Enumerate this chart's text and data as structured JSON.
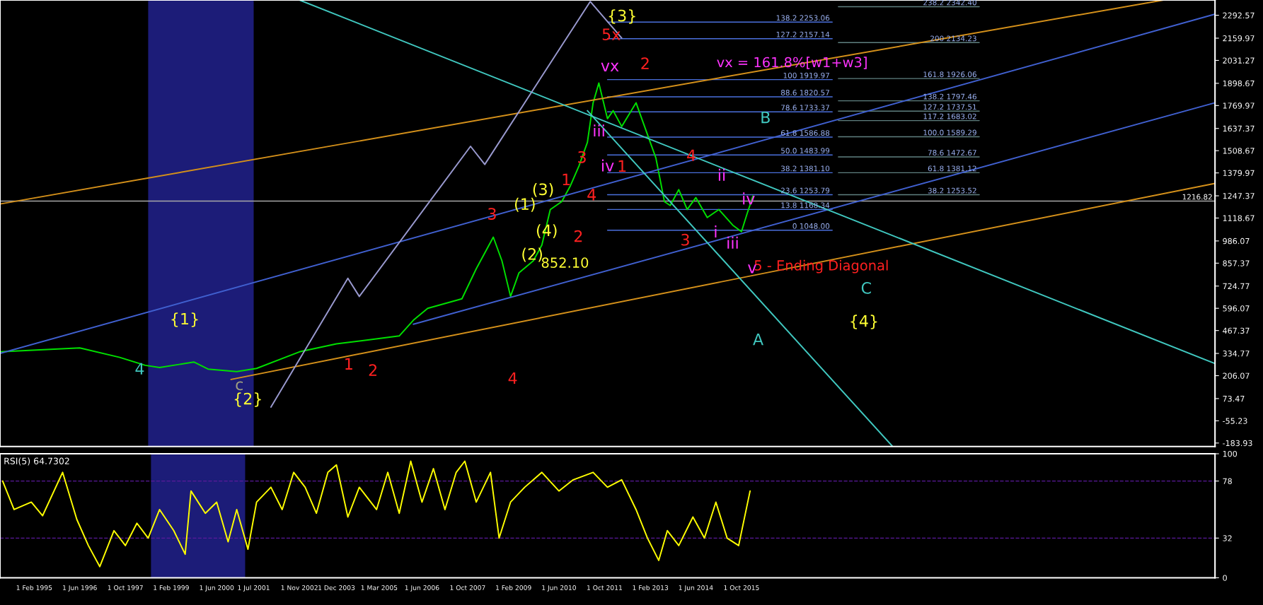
{
  "chart_data": [
    {
      "type": "line",
      "xlim": [
        "1994-02",
        "2029-08"
      ],
      "ylim": [
        -204,
        2381
      ],
      "yticks": [
        2292.57,
        2159.97,
        2031.27,
        1898.67,
        1769.97,
        1637.37,
        1508.67,
        1379.97,
        1247.37,
        1118.67,
        986.07,
        857.37,
        724.77,
        596.07,
        467.37,
        334.77,
        206.07,
        73.47,
        -55.23,
        -183.93
      ],
      "xticks": [
        {
          "value": "1995-02-01",
          "label": null
        },
        {
          "value": "1996-06-01",
          "label": null
        },
        {
          "value": "1997-10-01",
          "label": null
        },
        {
          "value": "1999-02-01",
          "label": null
        },
        {
          "value": "2000-06-01",
          "label": null
        },
        {
          "value": "2001-07-01",
          "label": null
        },
        {
          "value": "2002-11-01",
          "label": null
        },
        {
          "value": "2003-12-01",
          "label": null
        },
        {
          "value": "2005-03-01",
          "label": null
        },
        {
          "value": "2006-06-01",
          "label": null
        },
        {
          "value": "2007-10-01",
          "label": null
        },
        {
          "value": "2009-02-01",
          "label": null
        },
        {
          "value": "2010-06-01",
          "label": null
        },
        {
          "value": "2011-10-01",
          "label": null
        },
        {
          "value": "2013-02-01",
          "label": null
        },
        {
          "value": "2014-06-01",
          "label": null
        },
        {
          "value": "2015-10-01",
          "label": null
        }
      ],
      "tick_labels": "y",
      "series": [
        {
          "color": "#00e000",
          "x": [
            "1994-02",
            "1996-06",
            "1997-08",
            "1998-05",
            "1998-10",
            "1999-10",
            "2000-03",
            "2001-01",
            "2001-08",
            "2002-11",
            "2003-12",
            "2004-11",
            "2005-10",
            "2006-03",
            "2006-08",
            "2007-08",
            "2008-01",
            "2008-07",
            "2008-10",
            "2009-01",
            "2009-04",
            "2009-09",
            "2009-12",
            "2010-03",
            "2010-07",
            "2010-10",
            "2011-01",
            "2011-04",
            "2011-06",
            "2011-08",
            "2011-11",
            "2012-01",
            "2012-04",
            "2012-09",
            "2012-11",
            "2013-04",
            "2013-07",
            "2013-09",
            "2013-12",
            "2014-03",
            "2014-06",
            "2014-10",
            "2015-02",
            "2015-07",
            "2015-10",
            "2015-12",
            "2016-02"
          ],
          "values": [
            344,
            367,
            312,
            266,
            253,
            285,
            244,
            230,
            248,
            344,
            390,
            413,
            436,
            527,
            596,
            651,
            825,
            1008,
            871,
            665,
            802,
            871,
            962,
            1168,
            1214,
            1305,
            1420,
            1557,
            1786,
            1900,
            1694,
            1740,
            1649,
            1786,
            1694,
            1466,
            1214,
            1191,
            1283,
            1168,
            1237,
            1122,
            1168,
            1077,
            1040,
            1145,
            1246
          ]
        },
        {
          "color": "#d4901a",
          "x": [
            "1994-02",
            "2028-02"
          ],
          "values": [
            1200,
            2381
          ]
        },
        {
          "color": "#d4901a",
          "x": [
            "2000-11",
            "2029-08"
          ],
          "values": [
            184,
            1319
          ]
        },
        {
          "color": "#4060d0",
          "x": [
            "1994-02",
            "2029-08"
          ],
          "values": [
            335,
            2299
          ]
        },
        {
          "color": "#4060d0",
          "x": [
            "2006-03",
            "2029-08"
          ],
          "values": [
            504,
            1786
          ]
        },
        {
          "color": "#40c8c0",
          "x": [
            "2002-11",
            "2029-08"
          ],
          "values": [
            2381,
            276
          ]
        },
        {
          "color": "#40c8c0",
          "x": [
            "2011-04",
            "2020-03"
          ],
          "values": [
            1740,
            -204
          ]
        },
        {
          "color": "#9a9ad0",
          "x": [
            "2002-01",
            "2004-04",
            "2004-08",
            "2007-11",
            "2008-04",
            "2011-05",
            "2012-04"
          ],
          "values": [
            24,
            770,
            665,
            1534,
            1429,
            2372,
            2161
          ]
        }
      ],
      "bands": [
        {
          "axis": "x",
          "from": "1998-06",
          "to": "2001-07",
          "color": "#1c1c78"
        }
      ],
      "ref_lines": [
        {
          "axis": "y",
          "value": 2253.06,
          "label": "138.2 2253.06",
          "color": "#4a6fdc"
        },
        {
          "axis": "y",
          "value": 2157.14,
          "label": "127.2 2157.14",
          "color": "#4a6fdc"
        },
        {
          "axis": "y",
          "value": 1919.97,
          "label": "100 1919.97",
          "color": "#4a6fdc"
        },
        {
          "axis": "y",
          "value": 1820.57,
          "label": "88.6 1820.57",
          "color": "#4a6fdc"
        },
        {
          "axis": "y",
          "value": 1733.37,
          "label": "78.6 1733.37",
          "color": "#4a6fdc"
        },
        {
          "axis": "y",
          "value": 1586.88,
          "label": "61.8 1586.88",
          "color": "#4a6fdc"
        },
        {
          "axis": "y",
          "value": 1483.99,
          "label": "50.0 1483.99",
          "color": "#4a6fdc"
        },
        {
          "axis": "y",
          "value": 1381.1,
          "label": "38.2 1381.10",
          "color": "#4a6fdc"
        },
        {
          "axis": "y",
          "value": 1253.79,
          "label": "23.6 1253.79",
          "color": "#4a6fdc"
        },
        {
          "axis": "y",
          "value": 1168.34,
          "label": "13.8 1168.34",
          "color": "#4a6fdc"
        },
        {
          "axis": "y",
          "value": 1048.0,
          "label": "0 1048.00",
          "color": "#4a6fdc"
        },
        {
          "axis": "y",
          "value": 2342.4,
          "label": "238.2 2342.40",
          "color": "#5f8080"
        },
        {
          "axis": "y",
          "value": 2134.23,
          "label": "200 2134.23",
          "color": "#5f8080"
        },
        {
          "axis": "y",
          "value": 1926.06,
          "label": "161.8 1926.06",
          "color": "#5f8080"
        },
        {
          "axis": "y",
          "value": 1797.46,
          "label": "138.2 1797.46",
          "color": "#5f8080"
        },
        {
          "axis": "y",
          "value": 1737.51,
          "label": "127.2 1737.51",
          "color": "#5f8080"
        },
        {
          "axis": "y",
          "value": 1683.02,
          "label": "117.2 1683.02",
          "color": "#5f8080"
        },
        {
          "axis": "y",
          "value": 1589.29,
          "label": "100.0 1589.29",
          "color": "#5f8080"
        },
        {
          "axis": "y",
          "value": 1472.67,
          "label": "78.6 1472.67",
          "color": "#5f8080"
        },
        {
          "axis": "y",
          "value": 1381.12,
          "label": "61.8 1381.12",
          "color": "#5f8080"
        },
        {
          "axis": "y",
          "value": 1253.52,
          "label": "38.2 1253.52",
          "color": "#5f8080"
        },
        {
          "axis": "y",
          "value": 1216.82,
          "label": "1216.82",
          "color": "#a8a8a8"
        }
      ],
      "annotations": [
        "{1}",
        "{2}",
        "{3}",
        "{4}",
        "5x",
        "vx",
        "vx = 161.8%[w1+w3]",
        "1",
        "2",
        "3",
        "4",
        "1",
        "2",
        "3",
        "4",
        "1",
        "2",
        "4",
        "3",
        "5 - Ending Diagonal",
        "A",
        "B",
        "C",
        "(1)",
        "(2)",
        "(3)",
        "(4)",
        "852.10",
        "iii",
        "iv",
        "ii",
        "i",
        "iii",
        "iv",
        "v",
        "c",
        "4"
      ]
    },
    {
      "type": "line",
      "title": "RSI(5) 64.7302",
      "xlim": [
        "1994-02",
        "2029-08"
      ],
      "ylim": [
        0,
        100
      ],
      "yticks": [
        0,
        32,
        78,
        100
      ],
      "xticks": [
        {
          "value": "1995-02-01",
          "label": "1 Feb 1995"
        },
        {
          "value": "1996-06-01",
          "label": "1 Jun 1996"
        },
        {
          "value": "1997-10-01",
          "label": "1 Oct 1997"
        },
        {
          "value": "1999-02-01",
          "label": "1 Feb 1999"
        },
        {
          "value": "2000-06-01",
          "label": "1 Jun 2000"
        },
        {
          "value": "2001-07-01",
          "label": "1 Jul 2001"
        },
        {
          "value": "2002-11-01",
          "label": "1 Nov 2002"
        },
        {
          "value": "2003-12-01",
          "label": "1 Dec 2003"
        },
        {
          "value": "2005-03-01",
          "label": "1 Mar 2005"
        },
        {
          "value": "2006-06-01",
          "label": "1 Jun 2006"
        },
        {
          "value": "2007-10-01",
          "label": "1 Oct 2007"
        },
        {
          "value": "2009-02-01",
          "label": "1 Feb 2009"
        },
        {
          "value": "2010-06-01",
          "label": "1 Jun 2010"
        },
        {
          "value": "2011-10-01",
          "label": "1 Oct 2011"
        },
        {
          "value": "2013-02-01",
          "label": "1 Feb 2013"
        },
        {
          "value": "2014-06-01",
          "label": "1 Jun 2014"
        },
        {
          "value": "2015-10-01",
          "label": "1 Oct 2015"
        }
      ],
      "series": [
        {
          "color": "#ffff00",
          "x": [
            "1994-03",
            "1994-07",
            "1995-01",
            "1995-05",
            "1995-12",
            "1996-05",
            "1996-09",
            "1997-01",
            "1997-06",
            "1997-10",
            "1998-02",
            "1998-06",
            "1998-10",
            "1999-03",
            "1999-07",
            "1999-09",
            "2000-02",
            "2000-06",
            "2000-10",
            "2001-01",
            "2001-05",
            "2001-08",
            "2002-01",
            "2002-05",
            "2002-09",
            "2003-01",
            "2003-05",
            "2003-09",
            "2003-12",
            "2004-04",
            "2004-08",
            "2005-02",
            "2005-06",
            "2005-10",
            "2006-02",
            "2006-06",
            "2006-10",
            "2007-02",
            "2007-06",
            "2007-09",
            "2008-01",
            "2008-06",
            "2008-09",
            "2009-01",
            "2009-06",
            "2009-12",
            "2010-06",
            "2010-11",
            "2011-06",
            "2011-11",
            "2012-04",
            "2012-09",
            "2013-01",
            "2013-05",
            "2013-08",
            "2013-12",
            "2014-05",
            "2014-09",
            "2015-01",
            "2015-05",
            "2015-09",
            "2016-01"
          ],
          "values": [
            78,
            55,
            61,
            50,
            85,
            47,
            26,
            9,
            38,
            26,
            44,
            32,
            55,
            38,
            19,
            70,
            52,
            61,
            29,
            55,
            23,
            61,
            73,
            55,
            85,
            73,
            52,
            85,
            91,
            49,
            73,
            55,
            85,
            52,
            94,
            61,
            88,
            55,
            85,
            94,
            61,
            85,
            32,
            61,
            73,
            85,
            70,
            79,
            85,
            73,
            79,
            55,
            32,
            14,
            38,
            26,
            49,
            32,
            61,
            32,
            26,
            70
          ]
        }
      ],
      "bands": [
        {
          "axis": "x",
          "from": "1998-07",
          "to": "2001-04",
          "color": "#1c1c78"
        }
      ],
      "ref_lines": [
        {
          "axis": "y",
          "value": 32,
          "color": "#5a1a9a",
          "line_style": "dashed"
        },
        {
          "axis": "y",
          "value": 78,
          "color": "#5a1a9a",
          "line_style": "dashed"
        }
      ]
    }
  ]
}
